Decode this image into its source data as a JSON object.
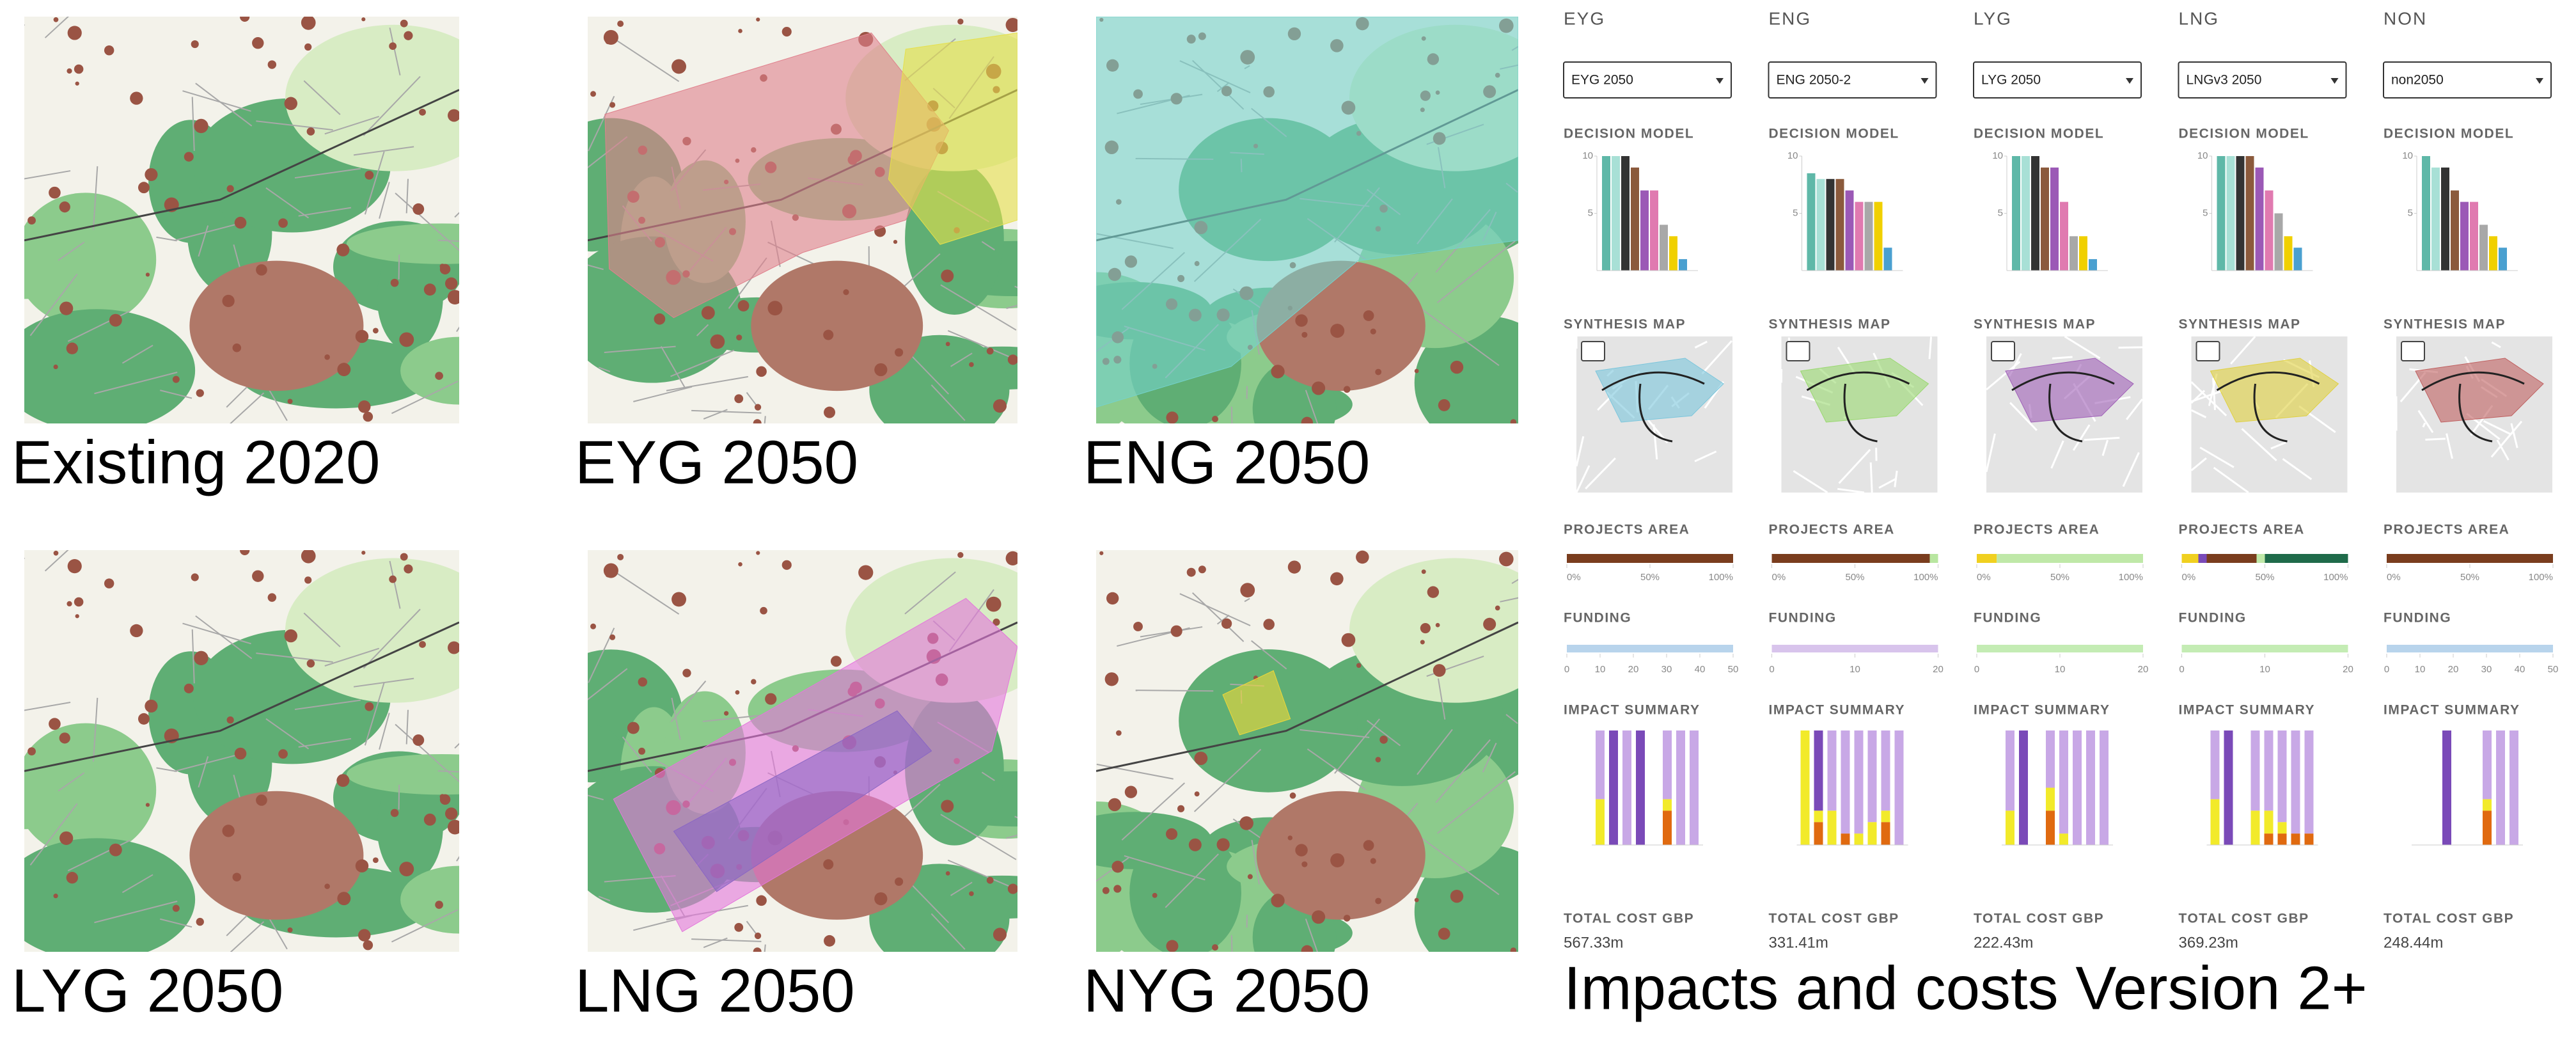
{
  "maps": [
    {
      "caption": "Existing 2020",
      "overlays": []
    },
    {
      "caption": "EYG 2050",
      "overlays": [
        "#e0808c",
        "#e6e04a"
      ]
    },
    {
      "caption": "ENG 2050",
      "overlays": [
        "#74d2cc"
      ]
    },
    {
      "caption": "LYG 2050",
      "overlays": []
    },
    {
      "caption": "LNG 2050",
      "overlays": [
        "#e476dc",
        "#8a66c4"
      ]
    },
    {
      "caption": "NYG 2050",
      "overlays": [
        "#f0d838"
      ]
    }
  ],
  "dashboard": {
    "caption": "Impacts and costs Version 2+",
    "labels": {
      "decision_model": "DECISION MODEL",
      "synthesis_map": "SYNTHESIS MAP",
      "projects_area": "PROJECTS AREA",
      "funding": "FUNDING",
      "impact_summary": "IMPACT SUMMARY",
      "total_cost": "TOTAL COST GBP"
    },
    "decision_model": {
      "ylim": [
        0,
        10
      ],
      "yticks": [
        5,
        10
      ],
      "colors": [
        "#5fb8a8",
        "#a8e0d6",
        "#333333",
        "#8b5a3c",
        "#9b59b6",
        "#e07ab0",
        "#a8a8a8",
        "#f0d000",
        "#4aa0d0"
      ]
    },
    "projects_area": {
      "xlim": [
        0,
        100
      ],
      "xticks": [
        {
          "value": 0,
          "label": "0%"
        },
        {
          "value": 50,
          "label": "50%"
        },
        {
          "value": 100,
          "label": "100%"
        }
      ]
    },
    "impact_summary": {
      "ylim": [
        0,
        10
      ]
    },
    "columns": [
      {
        "name": "EYG",
        "selection": "EYG 2050",
        "decision_model": [
          10,
          10,
          10,
          9,
          7,
          7,
          4,
          3,
          1
        ],
        "synthesis_color": "#7cc6dc",
        "projects_area": [
          {
            "value": 100,
            "color": "#7a3d1e"
          }
        ],
        "funding": {
          "value": 50,
          "color": "#b8d4ec",
          "xlim": [
            0,
            50
          ],
          "xticks": [
            0,
            10,
            20,
            30,
            40,
            50
          ]
        },
        "impact_summary": [
          {
            "color": "#e06a10",
            "values": [
              0,
              0,
              0,
              0,
              0,
              3,
              0,
              0
            ]
          },
          {
            "color": "#f2ea2a",
            "values": [
              4,
              0,
              0,
              0,
              0,
              1,
              0,
              0
            ]
          },
          {
            "color": "#c8a8e6",
            "values": [
              6,
              0,
              10,
              0,
              0,
              6,
              10,
              10
            ]
          },
          {
            "color": "#7a4ab8",
            "values": [
              0,
              10,
              0,
              10,
              0,
              0,
              0,
              0
            ]
          }
        ],
        "total_cost": "567.33m"
      },
      {
        "name": "ENG",
        "selection": "ENG 2050-2",
        "decision_model": [
          8.5,
          8,
          8,
          8,
          7,
          6,
          6,
          6,
          2
        ],
        "synthesis_color": "#9ad870",
        "projects_area": [
          {
            "value": 95,
            "color": "#7a3d1e"
          },
          {
            "value": 5,
            "color": "#b8e6a0"
          }
        ],
        "funding": {
          "value": 20,
          "color": "#d8c4ec",
          "xlim": [
            0,
            20
          ],
          "xticks": [
            0,
            10,
            20
          ]
        },
        "impact_summary": [
          {
            "color": "#e06a10",
            "values": [
              0,
              2,
              0,
              1,
              0,
              0,
              2,
              0
            ]
          },
          {
            "color": "#f2ea2a",
            "values": [
              10,
              1,
              3,
              0,
              1,
              2,
              1,
              0
            ]
          },
          {
            "color": "#c8a8e6",
            "values": [
              0,
              0,
              7,
              9,
              9,
              8,
              7,
              10
            ]
          },
          {
            "color": "#7a4ab8",
            "values": [
              0,
              7,
              0,
              0,
              0,
              0,
              0,
              0
            ]
          }
        ],
        "total_cost": "331.41m"
      },
      {
        "name": "LYG",
        "selection": "LYG 2050",
        "decision_model": [
          10,
          10,
          10,
          9,
          9,
          6,
          3,
          3,
          1
        ],
        "synthesis_color": "#a060b8",
        "projects_area": [
          {
            "value": 12,
            "color": "#f0d020"
          },
          {
            "value": 88,
            "color": "#bfe8a8"
          }
        ],
        "funding": {
          "value": 20,
          "color": "#c4ecb4",
          "xlim": [
            0,
            20
          ],
          "xticks": [
            0,
            10,
            20
          ]
        },
        "impact_summary": [
          {
            "color": "#e06a10",
            "values": [
              0,
              0,
              0,
              3,
              0,
              0,
              0,
              0
            ]
          },
          {
            "color": "#f2ea2a",
            "values": [
              3,
              0,
              0,
              2,
              1,
              0,
              0,
              0
            ]
          },
          {
            "color": "#c8a8e6",
            "values": [
              7,
              0,
              0,
              5,
              9,
              10,
              10,
              10
            ]
          },
          {
            "color": "#7a4ab8",
            "values": [
              0,
              10,
              0,
              0,
              0,
              0,
              0,
              0
            ]
          }
        ],
        "total_cost": "222.43m"
      },
      {
        "name": "LNG",
        "selection": "LNGv3 2050",
        "decision_model": [
          10,
          10,
          10,
          10,
          9,
          7,
          5,
          3,
          2
        ],
        "synthesis_color": "#e0d040",
        "projects_area": [
          {
            "value": 10,
            "color": "#f0d020"
          },
          {
            "value": 5,
            "color": "#7a4ab8"
          },
          {
            "value": 30,
            "color": "#7a3d1e"
          },
          {
            "value": 5,
            "color": "#bfe8a8"
          },
          {
            "value": 50,
            "color": "#1f6b4a"
          }
        ],
        "funding": {
          "value": 20,
          "color": "#c4ecb4",
          "xlim": [
            0,
            20
          ],
          "xticks": [
            0,
            10,
            20
          ]
        },
        "impact_summary": [
          {
            "color": "#e06a10",
            "values": [
              0,
              0,
              0,
              0,
              1,
              1,
              1,
              1
            ]
          },
          {
            "color": "#f2ea2a",
            "values": [
              4,
              0,
              0,
              3,
              2,
              1,
              0,
              0
            ]
          },
          {
            "color": "#c8a8e6",
            "values": [
              6,
              0,
              0,
              7,
              7,
              8,
              9,
              9
            ]
          },
          {
            "color": "#7a4ab8",
            "values": [
              0,
              10,
              0,
              0,
              0,
              0,
              0,
              0
            ]
          }
        ],
        "total_cost": "369.23m"
      },
      {
        "name": "NON",
        "selection": "non2050",
        "decision_model": [
          10,
          9,
          9,
          7,
          6,
          6,
          4,
          3,
          2
        ],
        "synthesis_color": "#c06060",
        "projects_area": [
          {
            "value": 100,
            "color": "#7a3d1e"
          }
        ],
        "funding": {
          "value": 50,
          "color": "#b8d4ec",
          "xlim": [
            0,
            50
          ],
          "xticks": [
            0,
            10,
            20,
            30,
            40,
            50
          ]
        },
        "impact_summary": [
          {
            "color": "#e06a10",
            "values": [
              0,
              0,
              0,
              0,
              0,
              3,
              0,
              0
            ]
          },
          {
            "color": "#f2ea2a",
            "values": [
              0,
              0,
              0,
              0,
              0,
              1,
              0,
              0
            ]
          },
          {
            "color": "#c8a8e6",
            "values": [
              0,
              0,
              0,
              0,
              0,
              6,
              10,
              10
            ]
          },
          {
            "color": "#7a4ab8",
            "values": [
              0,
              0,
              10,
              0,
              0,
              0,
              0,
              0
            ]
          }
        ],
        "total_cost": "248.44m"
      }
    ]
  }
}
